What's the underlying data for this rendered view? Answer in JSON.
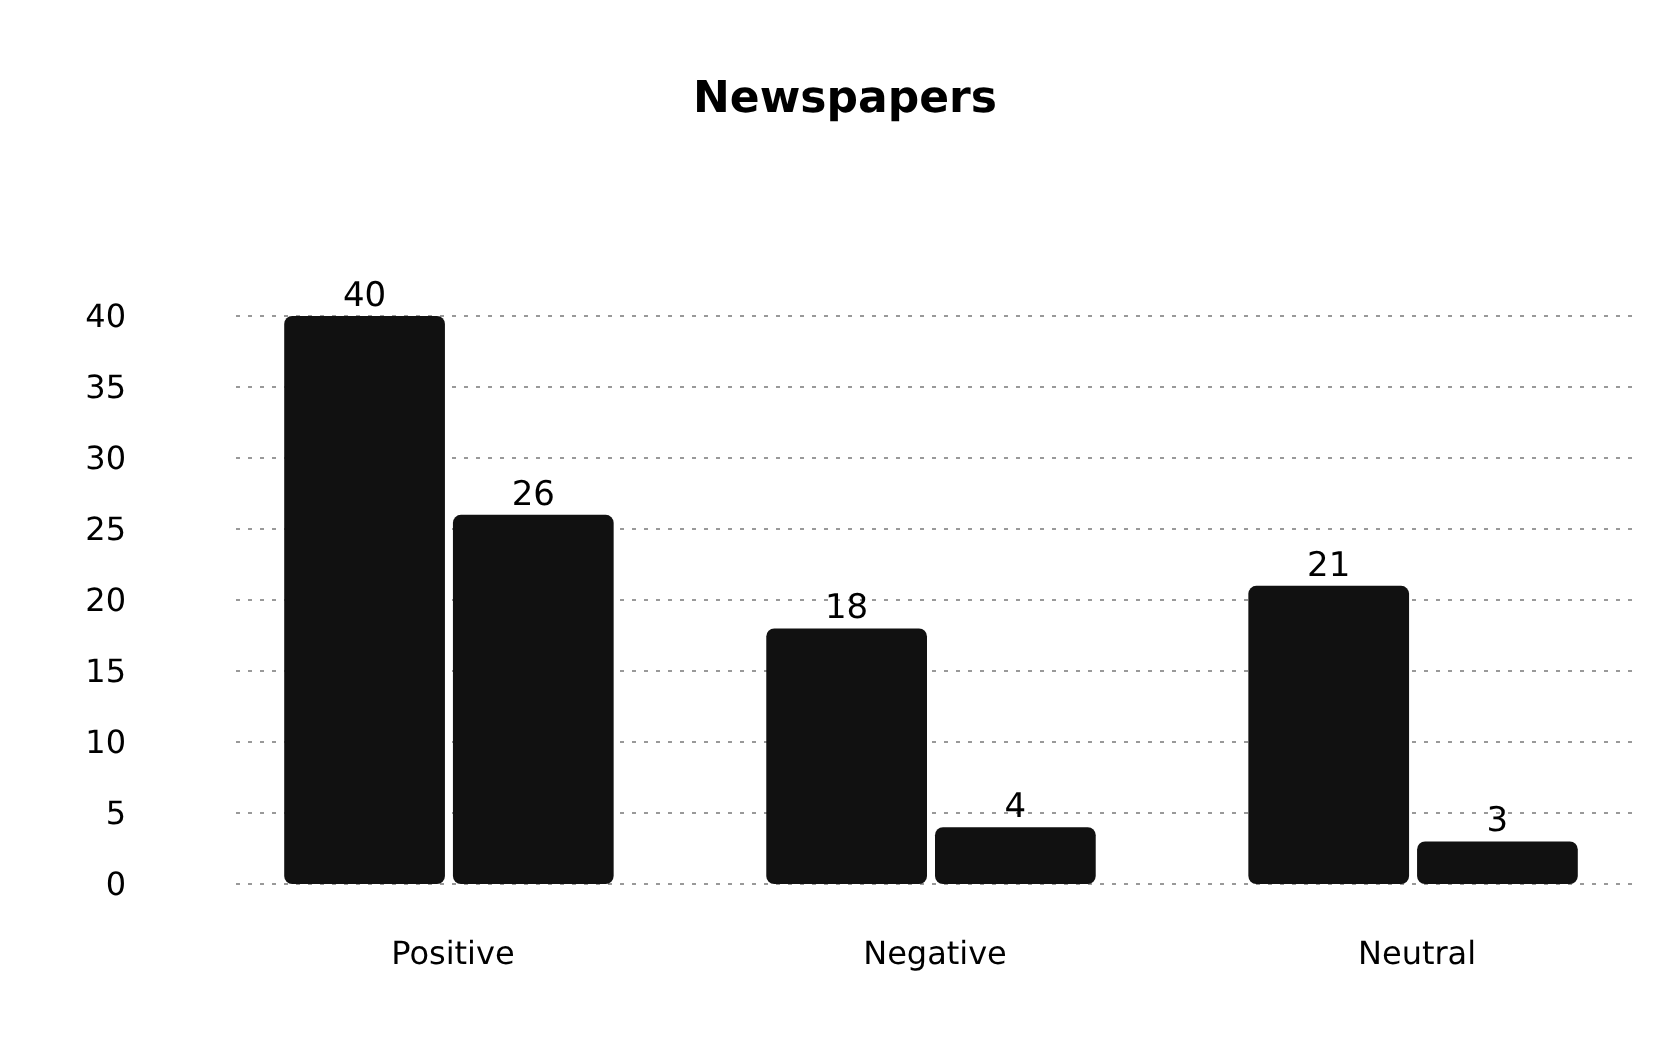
{
  "chart_data": {
    "type": "bar",
    "title": "Newspapers",
    "categories": [
      "Positive",
      "Negative",
      "Neutral"
    ],
    "series": [
      {
        "color": "#111111",
        "values": [
          40,
          18,
          21
        ]
      },
      {
        "color": "#111111",
        "values": [
          26,
          4,
          3
        ]
      }
    ],
    "ylim": [
      0,
      40
    ],
    "yticks": [
      0,
      5,
      10,
      15,
      20,
      25,
      30,
      35,
      40
    ],
    "grid": "y",
    "data_labels": true
  }
}
